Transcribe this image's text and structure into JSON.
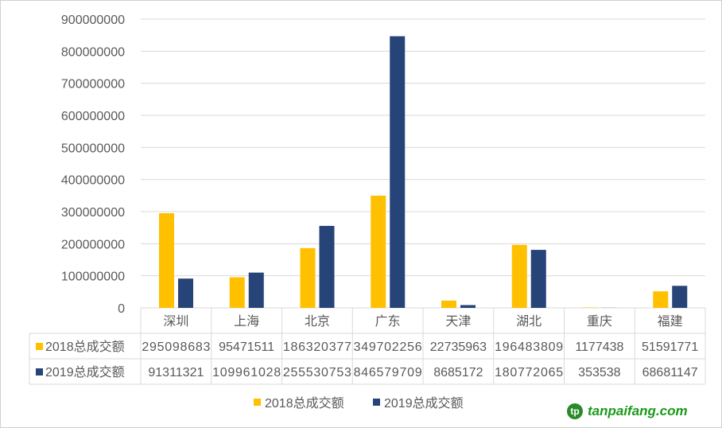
{
  "chart_data": {
    "type": "bar",
    "categories": [
      "深圳",
      "上海",
      "北京",
      "广东",
      "天津",
      "湖北",
      "重庆",
      "福建"
    ],
    "series": [
      {
        "name": "2018总成交额",
        "color": "#FFC000",
        "values": [
          295098683,
          95471511,
          186320377,
          349702256,
          22735963,
          196483809,
          1177438,
          51591771
        ]
      },
      {
        "name": "2019总成交额",
        "color": "#264478",
        "values": [
          91311321,
          109961028,
          255530753,
          846579709,
          8685172,
          180772065,
          353538,
          68681147
        ]
      }
    ],
    "ylim": [
      0,
      900000000
    ],
    "yticks": [
      "0",
      "100000000",
      "200000000",
      "300000000",
      "400000000",
      "500000000",
      "600000000",
      "700000000",
      "800000000",
      "900000000"
    ],
    "grid": true,
    "legend": "bottom",
    "data_table": true
  },
  "watermark": "tanpaifang.com"
}
